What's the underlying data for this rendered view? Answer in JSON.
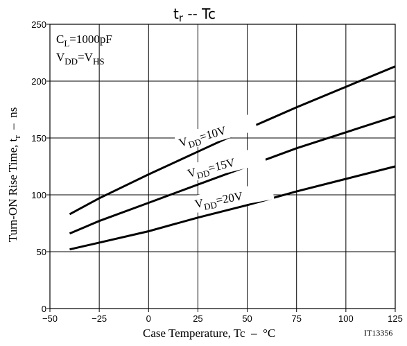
{
  "chart_data": {
    "type": "line",
    "title": {
      "main": "t",
      "sub": "r",
      "rest": " -- Tc"
    },
    "xlabel": "Case Temperature, Tc  –  °C",
    "ylabel": {
      "pre": "Turn-ON Rise Time, t",
      "sub": "r",
      "post": "  –  ns"
    },
    "xlim": [
      -50,
      125
    ],
    "ylim": [
      0,
      250
    ],
    "xticks": [
      -50,
      -25,
      0,
      25,
      50,
      75,
      100,
      125
    ],
    "yticks": [
      0,
      50,
      100,
      150,
      200,
      250
    ],
    "grid": true,
    "legend": "none",
    "conditions": [
      {
        "main": "C",
        "sub": "L",
        "rest": "=1000pF"
      },
      {
        "main": "V",
        "sub": "DD",
        "rest": "=V",
        "sub2": "HS"
      }
    ],
    "code": "IT13356",
    "series": [
      {
        "name": "VDD=10V",
        "label": {
          "main": "V",
          "sub": "DD",
          "rest": "=10V"
        },
        "x": [
          -40,
          -25,
          0,
          25,
          50,
          75,
          100,
          125
        ],
        "y": [
          83,
          97,
          118,
          138,
          158,
          177,
          195,
          213
        ]
      },
      {
        "name": "VDD=15V",
        "label": {
          "main": "V",
          "sub": "DD",
          "rest": "=15V"
        },
        "x": [
          -40,
          -25,
          0,
          25,
          50,
          75,
          100,
          125
        ],
        "y": [
          66,
          77,
          93,
          109,
          125,
          141,
          155,
          169
        ]
      },
      {
        "name": "VDD=20V",
        "label": {
          "main": "V",
          "sub": "DD",
          "rest": "=20V"
        },
        "x": [
          -40,
          -25,
          0,
          25,
          50,
          75,
          100,
          125
        ],
        "y": [
          52,
          58,
          68,
          80,
          91,
          103,
          114,
          125
        ]
      }
    ]
  }
}
